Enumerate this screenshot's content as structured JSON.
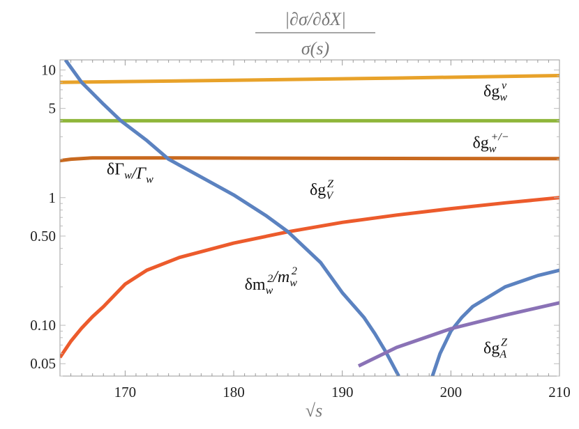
{
  "chart_data": {
    "type": "line",
    "title_numerator": "|∂σ/∂δX|",
    "title_denominator": "σ(s)",
    "xlabel": "√s",
    "ylabel": "",
    "xlim": [
      164,
      210
    ],
    "ylim": [
      0.04,
      12
    ],
    "yscale": "log",
    "grid": false,
    "x_ticks": [
      170,
      180,
      190,
      200,
      210
    ],
    "y_ticks": [
      {
        "value": 10,
        "label": "10"
      },
      {
        "value": 5,
        "label": "5"
      },
      {
        "value": 1,
        "label": "1"
      },
      {
        "value": 0.5,
        "label": "0.50"
      },
      {
        "value": 0.1,
        "label": "0.10"
      },
      {
        "value": 0.05,
        "label": "0.05"
      }
    ],
    "series": [
      {
        "name": "δg_w^ν",
        "color": "#e8a22a",
        "label": {
          "base": "δg",
          "sub": "w",
          "sup": "ν",
          "at": [
            203,
            6.2
          ]
        },
        "points": [
          [
            164,
            8.0
          ],
          [
            180,
            8.3
          ],
          [
            195,
            8.65
          ],
          [
            210,
            9.05
          ]
        ]
      },
      {
        "name": "green-line",
        "color": "#8fb63a",
        "points": [
          [
            164,
            4.0
          ],
          [
            210,
            4.0
          ]
        ]
      },
      {
        "name": "δg_w^+/-",
        "color": "#c8691f",
        "label": {
          "base": "δg",
          "sub": "w",
          "sup": "+/−",
          "at": [
            202,
            2.45
          ]
        },
        "label2": {
          "base": "δΓ",
          "sub": "w",
          "tail": "/Γ",
          "sub2": "w",
          "at": [
            168.3,
            1.52
          ]
        },
        "points": [
          [
            164,
            1.95
          ],
          [
            165,
            2.0
          ],
          [
            167,
            2.05
          ],
          [
            175,
            2.05
          ],
          [
            190,
            2.03
          ],
          [
            210,
            2.02
          ]
        ]
      },
      {
        "name": "δg_V^Z",
        "color": "#ec5b2c",
        "label": {
          "base": "δg",
          "sub": "V",
          "sup": "Z",
          "at": [
            187,
            1.05
          ]
        },
        "points": [
          [
            164,
            0.056
          ],
          [
            165,
            0.075
          ],
          [
            166,
            0.095
          ],
          [
            167,
            0.117
          ],
          [
            168,
            0.14
          ],
          [
            170,
            0.21
          ],
          [
            172,
            0.27
          ],
          [
            175,
            0.34
          ],
          [
            180,
            0.44
          ],
          [
            185,
            0.54
          ],
          [
            190,
            0.64
          ],
          [
            195,
            0.73
          ],
          [
            200,
            0.82
          ],
          [
            205,
            0.91
          ],
          [
            210,
            1.0
          ]
        ]
      },
      {
        "name": "δm_w^2/m_w^2",
        "color": "#5b82c0",
        "label": {
          "base": "δm",
          "sub": "w",
          "sup": "2",
          "tail": "/m",
          "sub2": "w",
          "sup2": "2",
          "at": [
            181,
            0.19
          ]
        },
        "points": [
          [
            164.5,
            12
          ],
          [
            166,
            8
          ],
          [
            168,
            5.4
          ],
          [
            169.6,
            4.0
          ],
          [
            172,
            2.8
          ],
          [
            174,
            2.0
          ],
          [
            177,
            1.45
          ],
          [
            180,
            1.05
          ],
          [
            183,
            0.72
          ],
          [
            185,
            0.54
          ],
          [
            188,
            0.31
          ],
          [
            190,
            0.18
          ],
          [
            192,
            0.115
          ],
          [
            193,
            0.086
          ],
          [
            194,
            0.062
          ],
          [
            195.2,
            0.04
          ]
        ],
        "points2": [
          [
            198.3,
            0.04
          ],
          [
            199,
            0.06
          ],
          [
            200,
            0.09
          ],
          [
            201,
            0.115
          ],
          [
            202,
            0.14
          ],
          [
            205,
            0.2
          ],
          [
            208,
            0.245
          ],
          [
            210,
            0.27
          ]
        ]
      },
      {
        "name": "δg_A^Z",
        "color": "#8a72b6",
        "label": {
          "base": "δg",
          "sub": "A",
          "sup": "Z",
          "at": [
            203,
            0.06
          ]
        },
        "points": [
          [
            191.5,
            0.048
          ],
          [
            195,
            0.067
          ],
          [
            200,
            0.094
          ],
          [
            205,
            0.12
          ],
          [
            210,
            0.15
          ]
        ]
      }
    ]
  }
}
